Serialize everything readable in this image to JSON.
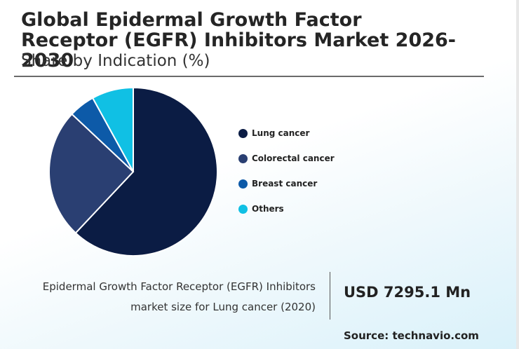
{
  "title": "Global Epidermal Growth Factor Receptor (EGFR) Inhibitors Market 2026-2030",
  "subtitle": "Share by Indication (%)",
  "chart_data": {
    "type": "pie",
    "title": "Share by Indication (%)",
    "categories": [
      "Lung cancer",
      "Colorectal cancer",
      "Breast cancer",
      "Others"
    ],
    "values": [
      62,
      25,
      5,
      8
    ],
    "colors": [
      "#0b1c44",
      "#2a3f72",
      "#0d5aa8",
      "#10c0e4"
    ],
    "legend_position": "right"
  },
  "footer": {
    "description": "Epidermal Growth Factor Receptor (EGFR) Inhibitors market size for Lung cancer (2020)",
    "value": "USD 7295.1 Mn"
  },
  "source": "Source: technavio.com"
}
